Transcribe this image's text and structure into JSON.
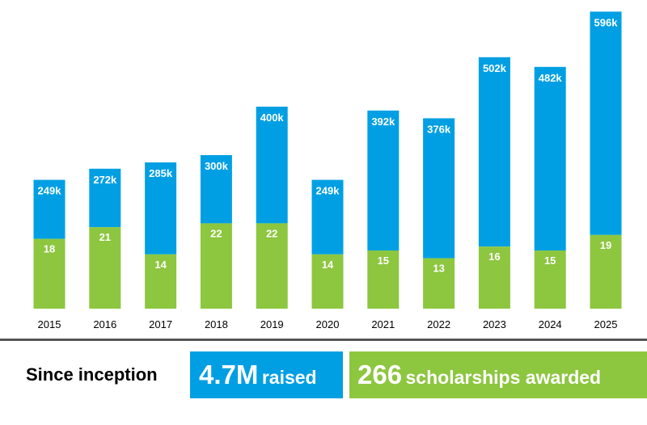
{
  "chart_data": {
    "type": "bar",
    "stacked": true,
    "categories": [
      "2015",
      "2016",
      "2017",
      "2018",
      "2019",
      "2020",
      "2021",
      "2022",
      "2023",
      "2024",
      "2025"
    ],
    "series": [
      {
        "name": "",
        "values": [
          18,
          21,
          14,
          22,
          22,
          14,
          15,
          13,
          16,
          15,
          19
        ],
        "labels": [
          "18",
          "21",
          "14",
          "22",
          "22",
          "14",
          "15",
          "13",
          "16",
          "15",
          "19"
        ],
        "color": "#8dc63f"
      },
      {
        "name": "",
        "values": [
          249,
          272,
          285,
          300,
          400,
          249,
          392,
          376,
          502,
          482,
          596
        ],
        "labels": [
          "249k",
          "272k",
          "285k",
          "300k",
          "400k",
          "249k",
          "392k",
          "376k",
          "502k",
          "482k",
          "596k"
        ],
        "color": "#009fe3"
      }
    ],
    "title": "",
    "xlabel": "",
    "ylabel": "",
    "grid": false,
    "legend": "none"
  },
  "summary": {
    "label": "Since inception",
    "raised_value": "4.7M",
    "raised_text": "raised",
    "awarded_value": "266",
    "awarded_text": "scholarships awarded"
  },
  "colors": {
    "raised": "#009fe3",
    "scholarships": "#8dc63f",
    "divider": "#555555"
  }
}
